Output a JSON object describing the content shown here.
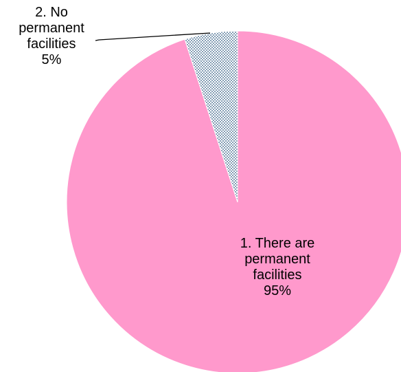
{
  "chart_data": {
    "type": "pie",
    "title": "",
    "start_angle_deg": 0,
    "direction": "clockwise",
    "slices": [
      {
        "category": "1. There are permanent facilities",
        "value": 95,
        "label_lines": [
          "1. There are",
          "permanent",
          "facilities",
          "95%"
        ],
        "color": "#ff99cc",
        "pattern": "solid"
      },
      {
        "category": "2. No permanent facilities",
        "value": 5,
        "label_lines": [
          "2. No",
          "permanent",
          "facilities",
          "5%"
        ],
        "color": "#1f4e79",
        "pattern": "dotted"
      }
    ],
    "legend": "none"
  }
}
